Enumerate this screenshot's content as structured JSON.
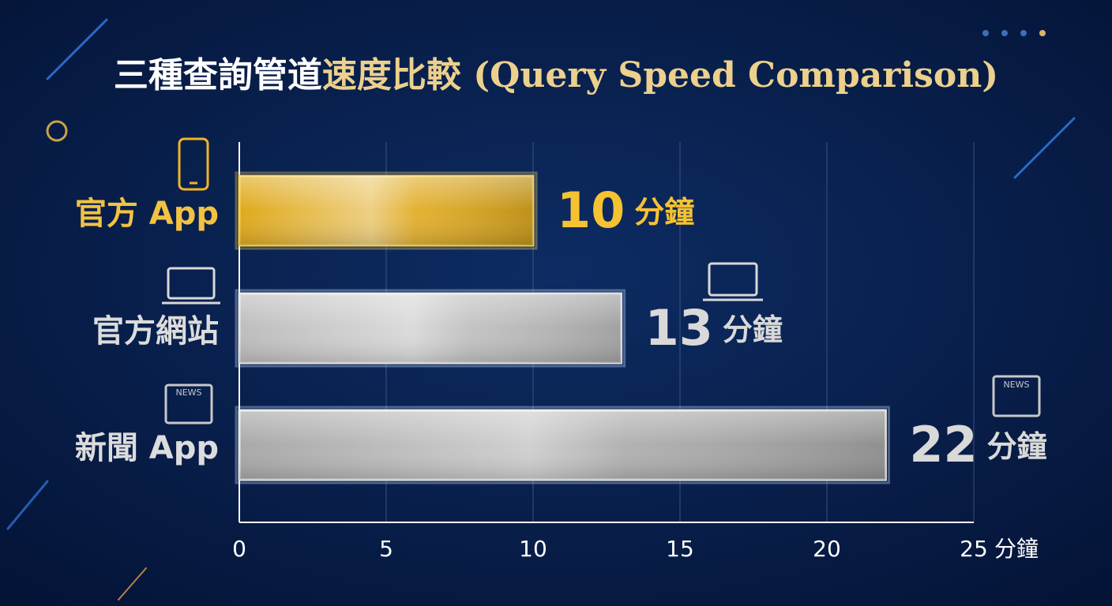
{
  "chart_data": {
    "type": "barh",
    "title": [
      "三種查詢管道",
      "速度比較 (Query Speed Comparison)"
    ],
    "categories": [
      "官方 App",
      "官方網站",
      "新聞 App"
    ],
    "values": [
      10,
      13,
      22
    ],
    "value_labels": [
      "10 分鐘",
      "13 分鐘",
      "22 分鐘"
    ],
    "colors": [
      "#e0a91c",
      "#bdbdbd",
      "#a9a9a9"
    ],
    "xlabel": "分鐘",
    "xlim": [
      0,
      25
    ],
    "xticks": [
      0,
      5,
      10,
      15,
      20,
      25
    ],
    "grid": true
  }
}
